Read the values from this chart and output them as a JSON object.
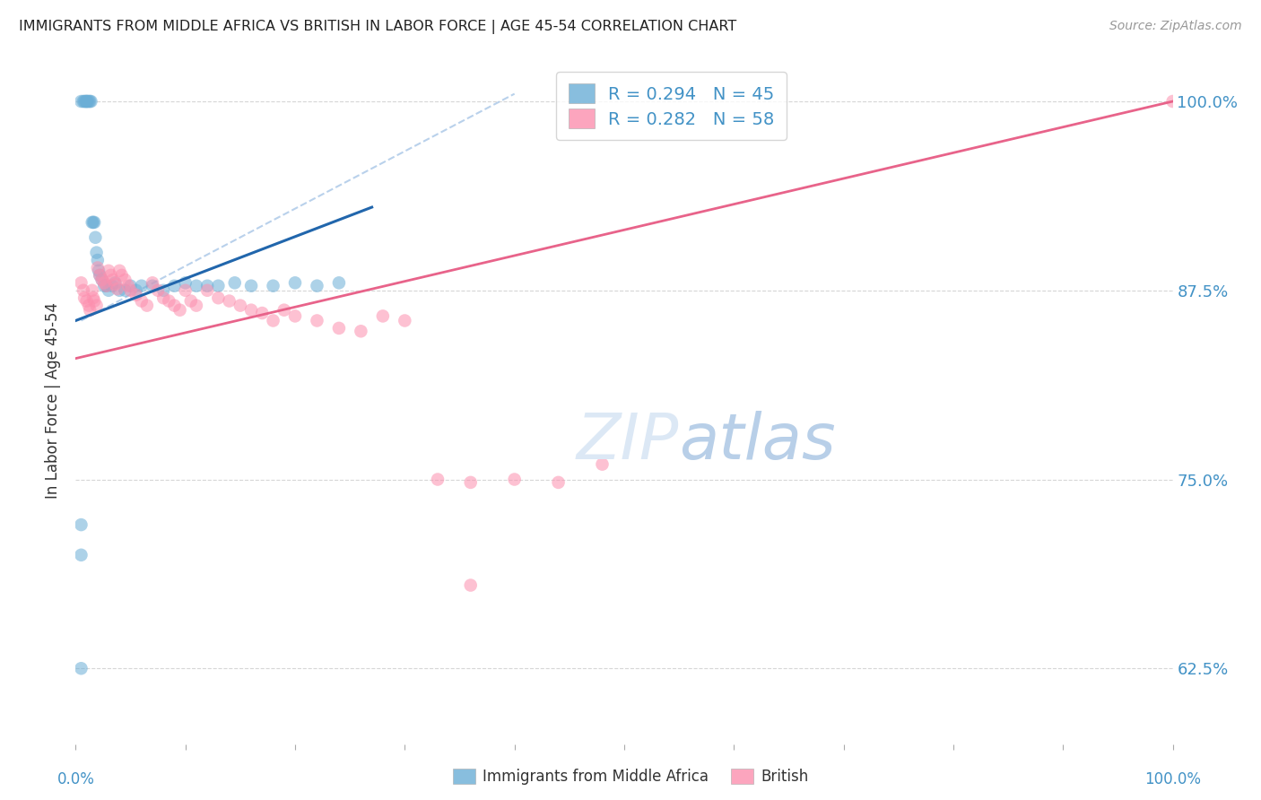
{
  "title": "IMMIGRANTS FROM MIDDLE AFRICA VS BRITISH IN LABOR FORCE | AGE 45-54 CORRELATION CHART",
  "source": "Source: ZipAtlas.com",
  "ylabel": "In Labor Force | Age 45-54",
  "xlim": [
    0.0,
    1.0
  ],
  "ylim": [
    0.575,
    1.03
  ],
  "yticks": [
    0.625,
    0.75,
    0.875,
    1.0
  ],
  "ytick_labels": [
    "62.5%",
    "75.0%",
    "87.5%",
    "100.0%"
  ],
  "blue_R": 0.294,
  "blue_N": 45,
  "pink_R": 0.282,
  "pink_N": 58,
  "blue_color": "#6baed6",
  "pink_color": "#fc8fae",
  "blue_line_color": "#2166ac",
  "pink_line_color": "#e8638a",
  "dashed_line_color": "#adc9e8",
  "background_color": "#ffffff",
  "grid_color": "#cccccc",
  "title_color": "#222222",
  "axis_label_color": "#333333",
  "ytick_label_color": "#4292c6",
  "legend_text_color": "#4292c6",
  "watermark_color": "#dce8f5",
  "blue_x": [
    0.005,
    0.007,
    0.008,
    0.009,
    0.01,
    0.01,
    0.011,
    0.012,
    0.013,
    0.014,
    0.015,
    0.016,
    0.017,
    0.018,
    0.019,
    0.02,
    0.021,
    0.022,
    0.024,
    0.026,
    0.028,
    0.03,
    0.033,
    0.036,
    0.04,
    0.045,
    0.05,
    0.055,
    0.06,
    0.07,
    0.08,
    0.09,
    0.1,
    0.11,
    0.12,
    0.13,
    0.145,
    0.16,
    0.18,
    0.2,
    0.22,
    0.24,
    0.005,
    0.005,
    0.005
  ],
  "blue_y": [
    1.0,
    1.0,
    1.0,
    1.0,
    1.0,
    1.0,
    1.0,
    1.0,
    1.0,
    1.0,
    0.92,
    0.92,
    0.92,
    0.91,
    0.9,
    0.895,
    0.888,
    0.885,
    0.882,
    0.878,
    0.878,
    0.875,
    0.878,
    0.88,
    0.875,
    0.875,
    0.878,
    0.875,
    0.878,
    0.878,
    0.875,
    0.878,
    0.88,
    0.878,
    0.878,
    0.878,
    0.88,
    0.878,
    0.878,
    0.88,
    0.878,
    0.88,
    0.7,
    0.72,
    0.625
  ],
  "pink_x": [
    0.005,
    0.007,
    0.008,
    0.01,
    0.012,
    0.013,
    0.015,
    0.016,
    0.017,
    0.019,
    0.02,
    0.022,
    0.024,
    0.026,
    0.028,
    0.03,
    0.032,
    0.034,
    0.036,
    0.038,
    0.04,
    0.042,
    0.045,
    0.048,
    0.05,
    0.055,
    0.06,
    0.065,
    0.07,
    0.075,
    0.08,
    0.085,
    0.09,
    0.095,
    0.1,
    0.105,
    0.11,
    0.12,
    0.13,
    0.14,
    0.15,
    0.16,
    0.17,
    0.18,
    0.19,
    0.2,
    0.22,
    0.24,
    0.26,
    0.28,
    0.3,
    0.33,
    0.36,
    0.4,
    0.44,
    0.48,
    0.36,
    1.0
  ],
  "pink_y": [
    0.88,
    0.875,
    0.87,
    0.868,
    0.865,
    0.862,
    0.875,
    0.87,
    0.868,
    0.865,
    0.89,
    0.885,
    0.882,
    0.88,
    0.878,
    0.888,
    0.885,
    0.882,
    0.879,
    0.876,
    0.888,
    0.885,
    0.882,
    0.878,
    0.875,
    0.872,
    0.868,
    0.865,
    0.88,
    0.875,
    0.87,
    0.868,
    0.865,
    0.862,
    0.875,
    0.868,
    0.865,
    0.875,
    0.87,
    0.868,
    0.865,
    0.862,
    0.86,
    0.855,
    0.862,
    0.858,
    0.855,
    0.85,
    0.848,
    0.858,
    0.855,
    0.75,
    0.748,
    0.75,
    0.748,
    0.76,
    0.68,
    1.0
  ],
  "blue_line_x0": 0.0,
  "blue_line_x1": 0.27,
  "blue_line_y0": 0.855,
  "blue_line_y1": 0.93,
  "pink_line_x0": 0.0,
  "pink_line_x1": 1.0,
  "pink_line_y0": 0.83,
  "pink_line_y1": 1.0,
  "dash_line_x0": 0.005,
  "dash_line_x1": 0.4,
  "dash_line_y0": 0.855,
  "dash_line_y1": 1.005
}
